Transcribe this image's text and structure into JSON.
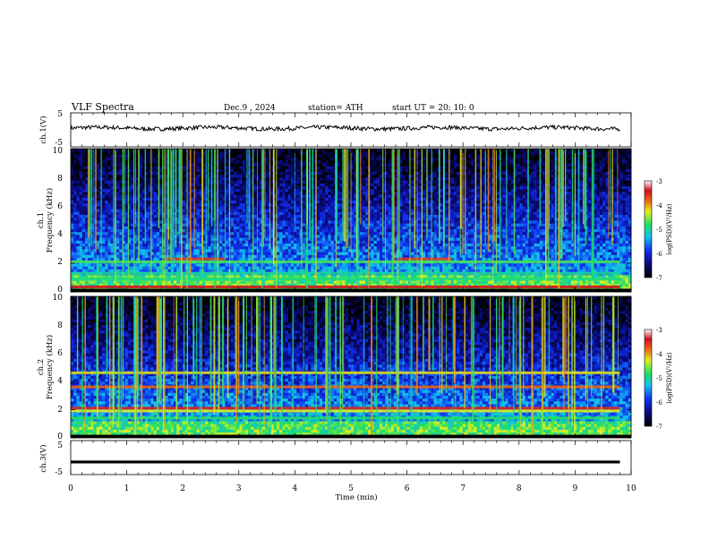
{
  "header": {
    "title": "VLF  Spectra",
    "date": "Dec.9  , 2024",
    "station": "station= ATH",
    "start": "start  UT  =    20: 10: 0"
  },
  "chart_data": [
    {
      "type": "line",
      "name": "ch1-waveform",
      "ylabel": "ch.1(V)",
      "ylim": [
        -5,
        5
      ],
      "yticks": [
        "5",
        "-5"
      ],
      "xlim": [
        0,
        10
      ],
      "approx_level": 0.5,
      "noise_amplitude": 1.2
    },
    {
      "type": "heatmap",
      "name": "ch1-spectrogram",
      "ylabel": "ch.1\nFrequency (kHz)",
      "xlim": [
        0,
        9.8
      ],
      "ylim": [
        0,
        10
      ],
      "yticks": [
        "0",
        "2",
        "4",
        "6",
        "8",
        "10"
      ],
      "colorbar": {
        "label": "log(PSD)(V²/Hz)",
        "range": [
          -7,
          -3
        ],
        "ticks": [
          "-3",
          "-4",
          "-5",
          "-6",
          "-7"
        ]
      },
      "bands_khz": [
        {
          "f": 2.3,
          "level": -3.6,
          "from_min": 1.7,
          "to_min": 2.75
        },
        {
          "f": 2.3,
          "level": -3.6,
          "from_min": 5.85,
          "to_min": 6.8
        },
        {
          "f": 2.1,
          "level": -4.7
        },
        {
          "f": 1.3,
          "level": -5.0
        },
        {
          "f": 0.9,
          "level": -4.9
        },
        {
          "f": 0.35,
          "level": -3.4
        }
      ]
    },
    {
      "type": "heatmap",
      "name": "ch2-spectrogram",
      "ylabel": "ch.2\nFrequency (kHz)",
      "xlim": [
        0,
        9.8
      ],
      "ylim": [
        0,
        10
      ],
      "yticks": [
        "0",
        "2",
        "4",
        "6",
        "8",
        "10"
      ],
      "colorbar": {
        "label": "log(PSD)(V²/Hz)",
        "range": [
          -7,
          -3
        ],
        "ticks": [
          "-3",
          "-4",
          "-5",
          "-6",
          "-7"
        ]
      },
      "bands_khz": [
        {
          "f": 4.6,
          "level": -4.2
        },
        {
          "f": 3.6,
          "level": -3.8
        },
        {
          "f": 2.1,
          "level": -3.5
        },
        {
          "f": 1.9,
          "level": -4.3
        },
        {
          "f": 1.4,
          "level": -4.8
        }
      ]
    },
    {
      "type": "line",
      "name": "ch3-waveform",
      "ylabel": "ch.3(V)",
      "xlabel": "Time  (min)",
      "ylim": [
        -5,
        5
      ],
      "yticks": [
        "5",
        "-5"
      ],
      "xlim": [
        0,
        10
      ],
      "xticks": [
        "0",
        "1",
        "2",
        "3",
        "4",
        "5",
        "6",
        "7",
        "8",
        "9",
        "10"
      ],
      "approx_level": -1.3
    }
  ]
}
